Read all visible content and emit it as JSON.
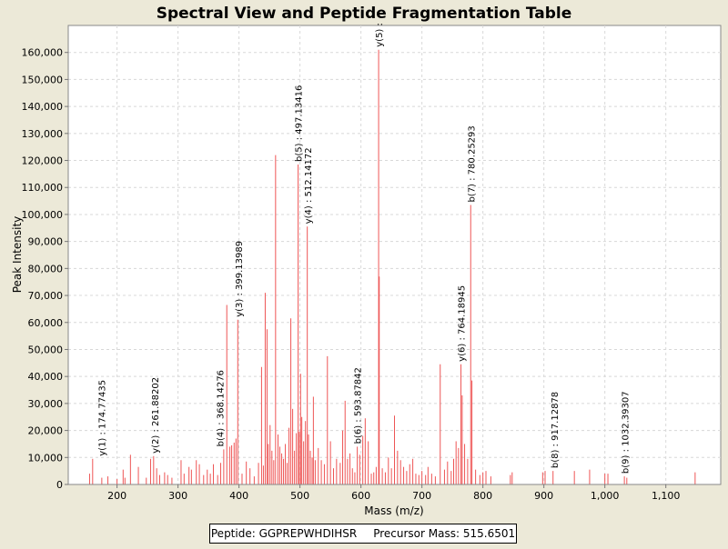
{
  "chart_data": {
    "type": "bar",
    "title": "Spectral View and Peptide Fragmentation Table",
    "xlabel": "Mass (m/z)",
    "ylabel": "Peak Intensity",
    "xlim": [
      120,
      1190
    ],
    "ylim": [
      0,
      170000
    ],
    "x_ticks": [
      200,
      300,
      400,
      500,
      600,
      700,
      800,
      900,
      1000,
      1100
    ],
    "x_tick_labels": [
      "200",
      "300",
      "400",
      "500",
      "600",
      "700",
      "800",
      "900",
      "1,000",
      "1,100"
    ],
    "y_ticks": [
      0,
      10000,
      20000,
      30000,
      40000,
      50000,
      60000,
      70000,
      80000,
      90000,
      100000,
      110000,
      120000,
      130000,
      140000,
      150000,
      160000
    ],
    "y_tick_labels": [
      "0",
      "10,000",
      "20,000",
      "30,000",
      "40,000",
      "50,000",
      "60,000",
      "70,000",
      "80,000",
      "90,000",
      "100,000",
      "110,000",
      "120,000",
      "130,000",
      "140,000",
      "150,000",
      "160,000"
    ],
    "grid": true,
    "peak_color": "#ee5555",
    "peaks": [
      [
        155,
        4000
      ],
      [
        160,
        9500
      ],
      [
        175,
        2500
      ],
      [
        185,
        3000
      ],
      [
        200,
        2000
      ],
      [
        210,
        5500
      ],
      [
        213,
        2500
      ],
      [
        222,
        11000
      ],
      [
        235,
        6500
      ],
      [
        248,
        2500
      ],
      [
        255,
        9500
      ],
      [
        260,
        10500
      ],
      [
        265,
        6000
      ],
      [
        270,
        3500
      ],
      [
        278,
        4500
      ],
      [
        283,
        3500
      ],
      [
        290,
        2500
      ],
      [
        305,
        9000
      ],
      [
        310,
        4000
      ],
      [
        318,
        6500
      ],
      [
        322,
        5500
      ],
      [
        330,
        9000
      ],
      [
        335,
        7500
      ],
      [
        342,
        3500
      ],
      [
        348,
        5500
      ],
      [
        353,
        4000
      ],
      [
        358,
        7500
      ],
      [
        365,
        3500
      ],
      [
        370,
        8000
      ],
      [
        375,
        13000
      ],
      [
        380,
        66500
      ],
      [
        385,
        14000
      ],
      [
        388,
        14500
      ],
      [
        392,
        15500
      ],
      [
        395,
        17000
      ],
      [
        398,
        61000
      ],
      [
        405,
        4000
      ],
      [
        412,
        8500
      ],
      [
        418,
        6000
      ],
      [
        425,
        3000
      ],
      [
        432,
        8000
      ],
      [
        437,
        43500
      ],
      [
        440,
        7000
      ],
      [
        443,
        71000
      ],
      [
        446,
        57500
      ],
      [
        448,
        15000
      ],
      [
        451,
        22000
      ],
      [
        454,
        12500
      ],
      [
        457,
        9000
      ],
      [
        460,
        122000
      ],
      [
        464,
        18500
      ],
      [
        467,
        14000
      ],
      [
        470,
        11500
      ],
      [
        473,
        9500
      ],
      [
        476,
        15000
      ],
      [
        479,
        8000
      ],
      [
        482,
        21000
      ],
      [
        485,
        61500
      ],
      [
        488,
        28000
      ],
      [
        491,
        12500
      ],
      [
        494,
        19000
      ],
      [
        497,
        118500
      ],
      [
        499,
        19500
      ],
      [
        501,
        41000
      ],
      [
        503,
        25000
      ],
      [
        506,
        16000
      ],
      [
        509,
        23500
      ],
      [
        512,
        95500
      ],
      [
        514,
        18500
      ],
      [
        517,
        12500
      ],
      [
        520,
        10000
      ],
      [
        522,
        32500
      ],
      [
        525,
        9000
      ],
      [
        530,
        13500
      ],
      [
        535,
        9000
      ],
      [
        540,
        7500
      ],
      [
        545,
        47500
      ],
      [
        550,
        16000
      ],
      [
        555,
        6000
      ],
      [
        560,
        9500
      ],
      [
        566,
        8000
      ],
      [
        570,
        20000
      ],
      [
        574,
        31000
      ],
      [
        578,
        9500
      ],
      [
        582,
        11500
      ],
      [
        586,
        6000
      ],
      [
        590,
        4500
      ],
      [
        594,
        14000
      ],
      [
        598,
        11000
      ],
      [
        603,
        18000
      ],
      [
        607,
        24500
      ],
      [
        612,
        16000
      ],
      [
        617,
        4000
      ],
      [
        621,
        4500
      ],
      [
        625,
        6500
      ],
      [
        629,
        161000
      ],
      [
        630,
        77000
      ],
      [
        635,
        6000
      ],
      [
        640,
        4500
      ],
      [
        645,
        10000
      ],
      [
        650,
        6000
      ],
      [
        655,
        25500
      ],
      [
        660,
        12500
      ],
      [
        665,
        9000
      ],
      [
        670,
        6500
      ],
      [
        675,
        5000
      ],
      [
        680,
        7500
      ],
      [
        685,
        9500
      ],
      [
        690,
        4000
      ],
      [
        695,
        3500
      ],
      [
        700,
        5000
      ],
      [
        706,
        3500
      ],
      [
        710,
        6500
      ],
      [
        716,
        4000
      ],
      [
        722,
        3000
      ],
      [
        730,
        44500
      ],
      [
        737,
        5500
      ],
      [
        742,
        8500
      ],
      [
        748,
        5000
      ],
      [
        752,
        9500
      ],
      [
        756,
        16000
      ],
      [
        760,
        13500
      ],
      [
        764,
        44500
      ],
      [
        766,
        33000
      ],
      [
        770,
        15000
      ],
      [
        775,
        9500
      ],
      [
        780,
        103500
      ],
      [
        782,
        38500
      ],
      [
        788,
        5500
      ],
      [
        795,
        3500
      ],
      [
        800,
        4500
      ],
      [
        805,
        5000
      ],
      [
        813,
        3000
      ],
      [
        845,
        3500
      ],
      [
        848,
        4500
      ],
      [
        898,
        4500
      ],
      [
        902,
        5000
      ],
      [
        915,
        5000
      ],
      [
        950,
        5000
      ],
      [
        975,
        5500
      ],
      [
        1000,
        4000
      ],
      [
        1005,
        4000
      ],
      [
        1032,
        3000
      ],
      [
        1036,
        2500
      ],
      [
        1148,
        4500
      ]
    ],
    "annotations": [
      {
        "x": 174.77435,
        "y": 9500,
        "label": "y(1) : 174.77435"
      },
      {
        "x": 261.88202,
        "y": 10500,
        "label": "y(2) : 261.88202"
      },
      {
        "x": 368.14276,
        "y": 13000,
        "label": "b(4) : 368.14276"
      },
      {
        "x": 399.13989,
        "y": 61000,
        "label": "y(3) : 399.13989"
      },
      {
        "x": 497.13416,
        "y": 118500,
        "label": "b(5) : 497.13416"
      },
      {
        "x": 512.14172,
        "y": 95500,
        "label": "y(4) : 512.14172"
      },
      {
        "x": 593.87842,
        "y": 14000,
        "label": "b(6) : 593.87842"
      },
      {
        "x": 629.0,
        "y": 161000,
        "label": "y(5) :"
      },
      {
        "x": 764.18945,
        "y": 44500,
        "label": "y(6) : 764.18945"
      },
      {
        "x": 780.25293,
        "y": 103500,
        "label": "b(7) : 780.25293"
      },
      {
        "x": 917.12878,
        "y": 5000,
        "label": "b(8) : 917.12878"
      },
      {
        "x": 1032.39307,
        "y": 3000,
        "label": "b(9) : 1032.39307"
      }
    ]
  },
  "legend": {
    "peptide": "Peptide: GGPREPWHDIHSR",
    "precursor": "Precursor Mass: 515.6501"
  }
}
